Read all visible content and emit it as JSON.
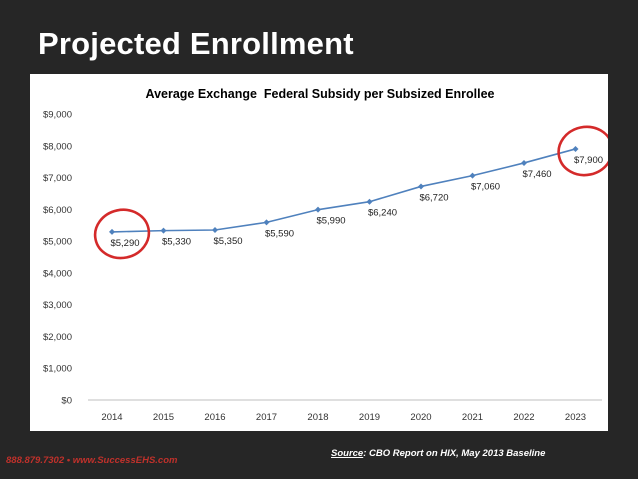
{
  "slide": {
    "title": "Projected Enrollment",
    "contact_phone": "888.879.7302",
    "contact_sep": "•",
    "contact_web": "www.SuccessEHS.com",
    "source_label": "Source",
    "source_text": ": CBO Report on HIX, May 2013 Baseline"
  },
  "colors": {
    "background": "#262626",
    "line": "#4f81bd",
    "highlight": "#d42a2a",
    "title": "#ffffff",
    "contact": "#c0312b"
  },
  "chart_data": {
    "type": "line",
    "title": "Average Exchange  Federal Subsidy per Subsized Enrollee",
    "xlabel": "",
    "ylabel": "",
    "categories": [
      "2014",
      "2015",
      "2016",
      "2017",
      "2018",
      "2019",
      "2020",
      "2021",
      "2022",
      "2023"
    ],
    "values": [
      5290,
      5330,
      5350,
      5590,
      5990,
      6240,
      6720,
      7060,
      7460,
      7900
    ],
    "data_labels": [
      "$5,290",
      "$5,330",
      "$5,350",
      "$5,590",
      "$5,990",
      "$6,240",
      "$6,720",
      "$7,060",
      "$7,460",
      "$7,900"
    ],
    "ylim": [
      0,
      9000
    ],
    "yticks": [
      0,
      1000,
      2000,
      3000,
      4000,
      5000,
      6000,
      7000,
      8000,
      9000
    ],
    "ytick_labels": [
      "$0",
      "$1,000",
      "$2,000",
      "$3,000",
      "$4,000",
      "$5,000",
      "$6,000",
      "$7,000",
      "$8,000",
      "$9,000"
    ],
    "grid": false,
    "legend": "none",
    "highlighted_points": [
      "2014",
      "2023"
    ]
  }
}
